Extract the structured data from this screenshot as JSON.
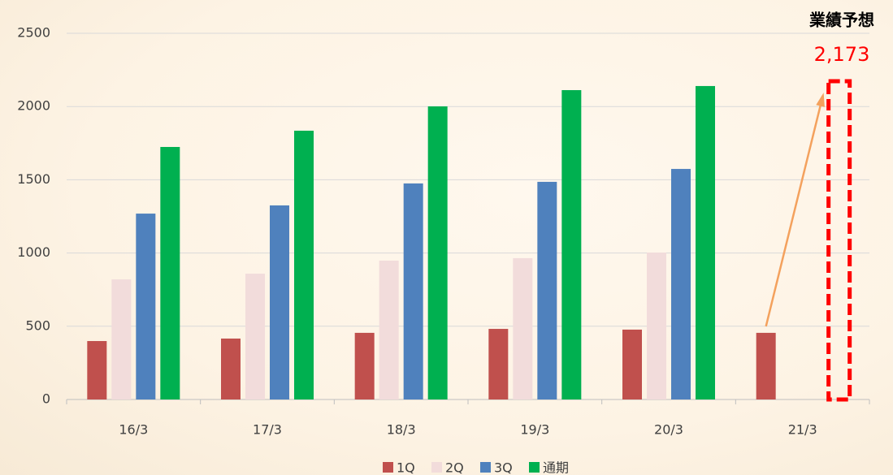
{
  "chart_data": {
    "type": "bar",
    "categories": [
      "16/3",
      "17/3",
      "18/3",
      "19/3",
      "20/3",
      "21/3"
    ],
    "series": [
      {
        "name": "1Q",
        "color": "#c0504d",
        "values": [
          399,
          416,
          455,
          482,
          477,
          455
        ]
      },
      {
        "name": "2Q",
        "color": "#f2dcdb",
        "values": [
          820,
          859,
          948,
          965,
          1003,
          null
        ]
      },
      {
        "name": "3Q",
        "color": "#4f81bd",
        "values": [
          1269,
          1325,
          1475,
          1486,
          1574,
          null
        ]
      },
      {
        "name": "通期",
        "color": "#00b050",
        "values": [
          1724,
          1835,
          2001,
          2112,
          2140,
          null
        ]
      }
    ],
    "ylim": [
      0,
      2500
    ],
    "yticks": [
      0,
      500,
      1000,
      1500,
      2000,
      2500
    ],
    "grid": true,
    "legend": "bottom",
    "forecast": {
      "label": "業績予想",
      "value": 2173,
      "value_label": "2,173",
      "color": "#ff0000"
    }
  }
}
